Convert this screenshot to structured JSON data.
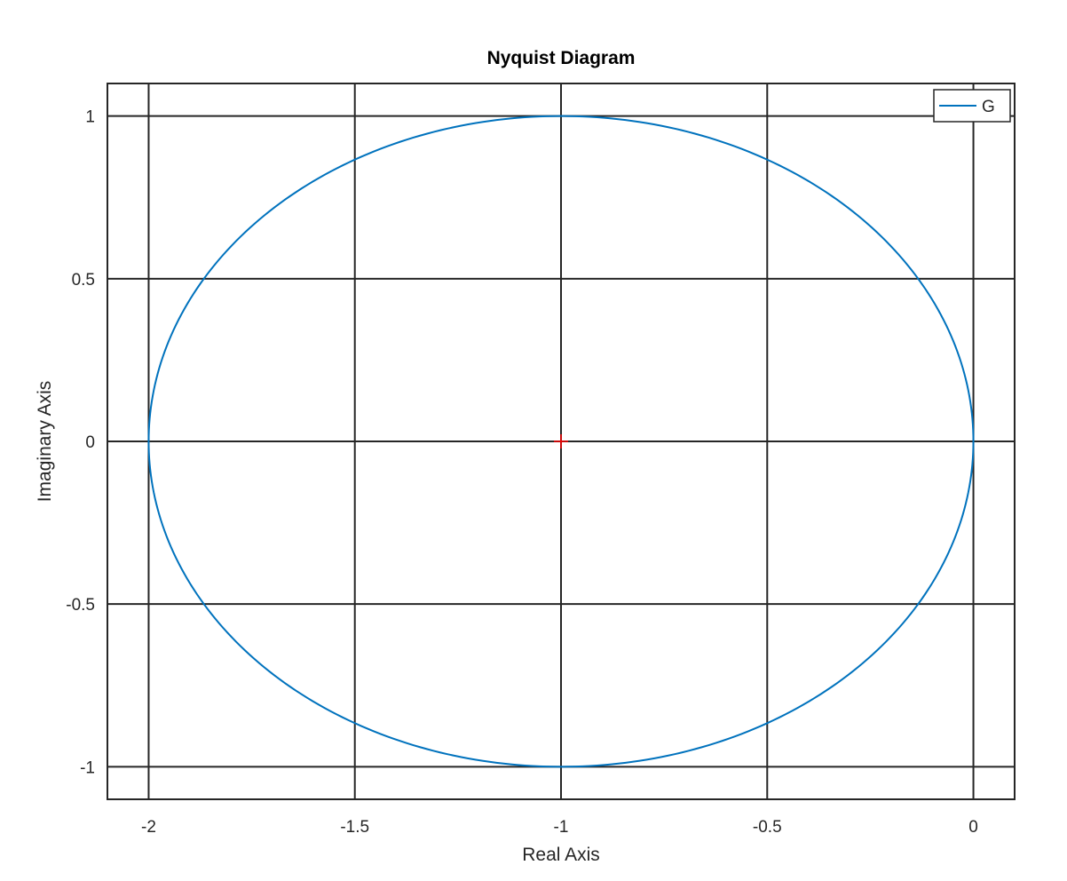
{
  "chart_data": {
    "type": "line",
    "title": "Nyquist Diagram",
    "xlabel": "Real Axis",
    "ylabel": "Imaginary Axis",
    "xlim": [
      -2.1,
      0.1
    ],
    "ylim": [
      -1.1,
      1.1
    ],
    "xticks": [
      -2,
      -1.5,
      -1,
      -0.5,
      0
    ],
    "xtick_labels": [
      "-2",
      "-1.5",
      "-1",
      "-0.5",
      "0"
    ],
    "yticks": [
      -1,
      -0.5,
      0,
      0.5,
      1
    ],
    "ytick_labels": [
      "-1",
      "-0.5",
      "0",
      "0.5",
      "1"
    ],
    "grid": true,
    "legend_position": "top-right",
    "series": [
      {
        "name": "G",
        "color": "#0072BD",
        "shape": "circle",
        "center": [
          -1,
          0
        ],
        "radius": 1,
        "x": [
          0,
          -0.134,
          -0.5,
          -1,
          -1.5,
          -1.866,
          -2,
          -1.866,
          -1.5,
          -1,
          -0.5,
          -0.134,
          0
        ],
        "y": [
          0,
          0.5,
          0.866,
          1,
          0.866,
          0.5,
          0,
          -0.5,
          -0.866,
          -1,
          -0.866,
          -0.5,
          0
        ]
      }
    ],
    "critical_point": {
      "x": -1,
      "y": 0,
      "marker": "+",
      "color": "#FF0000"
    }
  }
}
